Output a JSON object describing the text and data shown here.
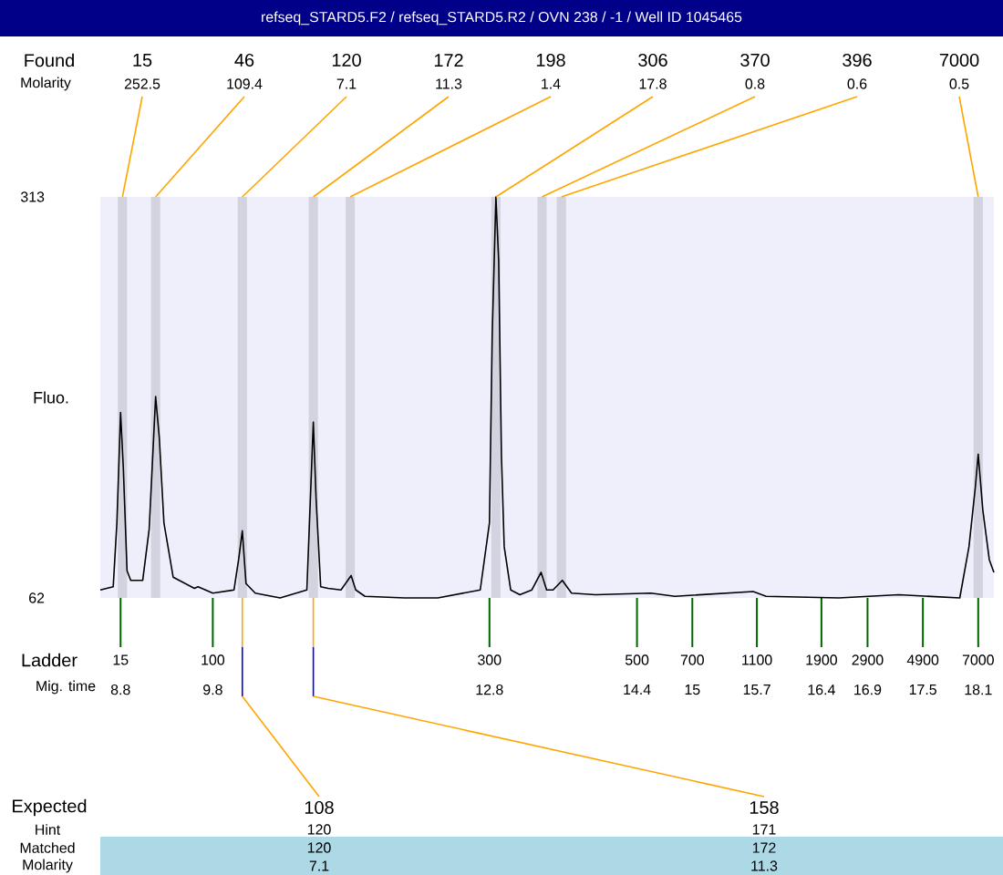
{
  "chart_data": {
    "type": "line",
    "title": "refseq_STARD5.F2 / refseq_STARD5.R2 / OVN 238 / -1 / Well ID 1045465",
    "ylabel": "Fluo.",
    "xlabel": "Mig. time",
    "x": [
      8.58,
      8.72,
      8.76,
      8.8,
      8.83,
      8.87,
      8.91,
      9.04,
      9.11,
      9.18,
      9.22,
      9.27,
      9.37,
      9.6,
      9.64,
      9.8,
      10.03,
      10.08,
      10.12,
      10.16,
      10.26,
      10.53,
      10.82,
      10.89,
      10.92,
      10.97,
      11.05,
      11.19,
      11.3,
      11.35,
      11.45,
      11.88,
      12.24,
      12.7,
      12.8,
      12.83,
      12.87,
      12.9,
      12.93,
      12.96,
      13.03,
      13.13,
      13.26,
      13.36,
      13.42,
      13.49,
      13.59,
      13.69,
      13.95,
      14.55,
      14.81,
      15.66,
      15.8,
      16.59,
      17.24,
      17.9,
      18.0,
      18.07,
      18.1,
      18.15,
      18.22,
      18.27
    ],
    "series": [
      {
        "color": "#000000",
        "values": [
          67,
          69,
          109,
          178,
          143,
          79,
          73,
          73,
          105,
          188,
          162,
          109,
          75,
          68,
          69,
          65,
          67,
          86,
          104,
          71,
          65,
          62,
          67,
          172,
          124,
          69,
          68,
          67,
          76,
          67,
          63,
          62,
          62,
          67,
          109,
          227,
          313,
          273,
          151,
          94,
          67,
          64,
          67,
          78,
          67,
          67,
          73,
          65,
          64,
          65,
          63,
          66,
          63,
          62,
          64,
          62,
          94,
          132,
          152,
          117,
          86,
          78
        ]
      }
    ],
    "xlim": [
      8.58,
      18.27
    ],
    "ylim": [
      62,
      313
    ],
    "xticks": [
      8.8,
      9.8,
      12.8,
      14.4,
      15,
      15.7,
      16.4,
      16.9,
      17.5,
      18.1
    ],
    "yticks": [
      62,
      313
    ],
    "bands": [
      {
        "axis": "x",
        "from": 8.77,
        "to": 8.87,
        "color": "#d3d3df"
      },
      {
        "axis": "x",
        "from": 9.13,
        "to": 9.23,
        "color": "#d3d3df"
      },
      {
        "axis": "x",
        "from": 10.07,
        "to": 10.17,
        "color": "#d3d3df"
      },
      {
        "axis": "x",
        "from": 10.84,
        "to": 10.94,
        "color": "#d3d3df"
      },
      {
        "axis": "x",
        "from": 11.24,
        "to": 11.34,
        "color": "#d3d3df"
      },
      {
        "axis": "x",
        "from": 12.82,
        "to": 12.92,
        "color": "#d3d3df"
      },
      {
        "axis": "x",
        "from": 13.32,
        "to": 13.42,
        "color": "#d3d3df"
      },
      {
        "axis": "x",
        "from": 13.53,
        "to": 13.63,
        "color": "#d3d3df"
      },
      {
        "axis": "x",
        "from": 18.05,
        "to": 18.15,
        "color": "#d3d3df"
      }
    ],
    "annotations": [
      "Found",
      "Molarity",
      "15",
      "46",
      "120",
      "172",
      "198",
      "306",
      "370",
      "396",
      "7000",
      {
        "text": "252.5",
        "x": 8.82
      },
      {
        "text": "109.4",
        "x": 9.18
      },
      {
        "text": "7.1",
        "x": 10.12
      },
      {
        "text": "11.3",
        "x": 10.89
      },
      {
        "text": "1.4",
        "x": 11.29
      },
      {
        "text": "17.8",
        "x": 12.87
      },
      {
        "text": "0.8",
        "x": 13.37
      },
      {
        "text": "0.6",
        "x": 13.58
      },
      {
        "text": "0.5",
        "x": 18.1
      },
      "Ladder",
      "15",
      "100",
      "300",
      "500",
      "700",
      "1100",
      "1900",
      "2900",
      "4900",
      "7000",
      "Expected",
      "Hint",
      "Matched",
      "Molarity",
      "108",
      "120",
      "120",
      "7.1",
      "158",
      "171",
      "172",
      "11.3"
    ]
  }
}
